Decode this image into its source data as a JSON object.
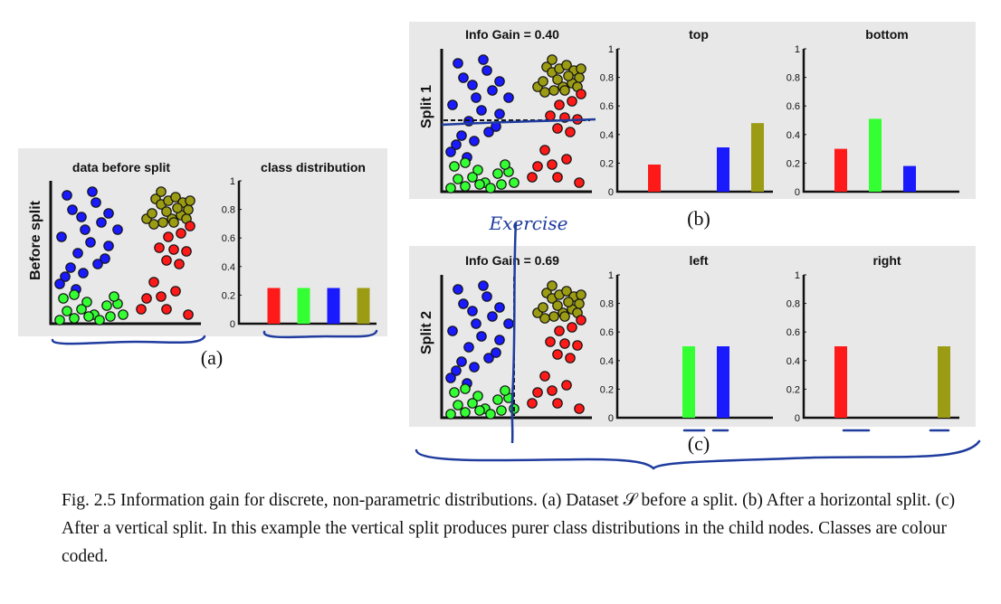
{
  "colors": {
    "red": "#ff1a1a",
    "green": "#33ff33",
    "blue": "#1a1aff",
    "olive": "#9b9b14",
    "annotation": "#1f3c9e",
    "panel_bg": "#e8e8e8"
  },
  "panels": {
    "a": {
      "row_label": "Before split",
      "scatter_title": "data before split",
      "bar_title": "class distribution",
      "letter": "(a)"
    },
    "b": {
      "row_label": "Split 1",
      "info_gain": "Info Gain = 0.40",
      "bar1_title": "top",
      "bar2_title": "bottom",
      "letter": "(b)",
      "handwritten_note": "Exercise"
    },
    "c": {
      "row_label": "Split 2",
      "info_gain": "Info Gain = 0.69",
      "bar1_title": "left",
      "bar2_title": "right",
      "letter": "(c)"
    }
  },
  "caption": "Fig. 2.5 Information gain for discrete, non-parametric distributions. (a) Dataset 𝒮 before a split. (b) After a horizontal split. (c) After a vertical split. In this example the vertical split produces purer class distributions in the child nodes. Classes are colour coded.",
  "chart_data": [
    {
      "type": "scatter",
      "title": "data before split",
      "classes": [
        "red",
        "green",
        "blue",
        "olive"
      ],
      "note": "four classes of 2D points"
    },
    {
      "type": "bar",
      "title": "class distribution",
      "categories": [
        "red",
        "green",
        "blue",
        "olive"
      ],
      "values": [
        0.25,
        0.25,
        0.25,
        0.25
      ],
      "ylim": [
        0,
        1
      ],
      "yticks": [
        "0",
        "0.2",
        "0.4",
        "0.6",
        "0.8",
        "1"
      ]
    },
    {
      "type": "bar",
      "title": "top",
      "categories": [
        "red",
        "green",
        "blue",
        "olive"
      ],
      "values": [
        0.19,
        0,
        0.31,
        0.48
      ],
      "ylim": [
        0,
        1
      ],
      "yticks": [
        "0",
        "0.2",
        "0.4",
        "0.6",
        "0.8",
        "1"
      ]
    },
    {
      "type": "bar",
      "title": "bottom",
      "categories": [
        "red",
        "green",
        "blue",
        "olive"
      ],
      "values": [
        0.3,
        0.51,
        0.18,
        0
      ],
      "ylim": [
        0,
        1
      ],
      "yticks": [
        "0",
        "0.2",
        "0.4",
        "0.6",
        "0.8",
        "1"
      ]
    },
    {
      "type": "bar",
      "title": "left",
      "categories": [
        "red",
        "green",
        "blue",
        "olive"
      ],
      "values": [
        0,
        0.5,
        0.5,
        0
      ],
      "ylim": [
        0,
        1
      ],
      "yticks": [
        "0",
        "0.2",
        "0.4",
        "0.6",
        "0.8",
        "1"
      ]
    },
    {
      "type": "bar",
      "title": "right",
      "categories": [
        "red",
        "green",
        "blue",
        "olive"
      ],
      "values": [
        0.5,
        0,
        0,
        0.5
      ],
      "ylim": [
        0,
        1
      ],
      "yticks": [
        "0",
        "0.2",
        "0.4",
        "0.6",
        "0.8",
        "1"
      ]
    }
  ]
}
